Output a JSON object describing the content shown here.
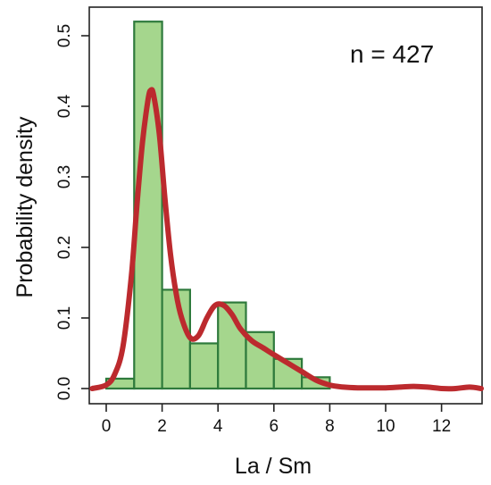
{
  "chart_data": {
    "type": "histogram",
    "xlabel": "La / Sm",
    "ylabel": "Probability density",
    "annotation": "n = 427",
    "xlim": [
      -0.5,
      13.5
    ],
    "ylim": [
      -0.03,
      0.555
    ],
    "x_ticks": [
      0,
      2,
      4,
      6,
      8,
      10,
      12
    ],
    "x_tick_labels": [
      "0",
      "2",
      "4",
      "6",
      "8",
      "10",
      "12"
    ],
    "y_ticks": [
      0.0,
      0.1,
      0.2,
      0.3,
      0.4,
      0.5
    ],
    "y_tick_labels": [
      "0.0",
      "0.1",
      "0.2",
      "0.3",
      "0.4",
      "0.5"
    ],
    "bins": [
      {
        "x0": 0,
        "x1": 1,
        "density": 0.014
      },
      {
        "x0": 1,
        "x1": 2,
        "density": 0.52
      },
      {
        "x0": 2,
        "x1": 3,
        "density": 0.14
      },
      {
        "x0": 3,
        "x1": 4,
        "density": 0.064
      },
      {
        "x0": 4,
        "x1": 5,
        "density": 0.122
      },
      {
        "x0": 5,
        "x1": 6,
        "density": 0.08
      },
      {
        "x0": 6,
        "x1": 7,
        "density": 0.042
      },
      {
        "x0": 7,
        "x1": 8,
        "density": 0.016
      }
    ],
    "density_curve": {
      "x": [
        -0.5,
        0,
        0.3,
        0.6,
        0.9,
        1.1,
        1.3,
        1.5,
        1.6,
        1.7,
        1.9,
        2.1,
        2.3,
        2.5,
        2.7,
        3.0,
        3.3,
        3.6,
        3.9,
        4.2,
        4.5,
        4.8,
        5.2,
        5.6,
        6.0,
        6.5,
        7.0,
        7.5,
        8.0,
        8.5,
        9.0,
        9.5,
        10.0,
        10.5,
        11.0,
        11.5,
        12.0,
        12.5,
        13.0,
        13.5
      ],
      "y": [
        0.0,
        0.005,
        0.02,
        0.06,
        0.16,
        0.26,
        0.35,
        0.41,
        0.423,
        0.415,
        0.36,
        0.27,
        0.19,
        0.135,
        0.1,
        0.072,
        0.075,
        0.1,
        0.118,
        0.118,
        0.105,
        0.085,
        0.068,
        0.058,
        0.048,
        0.036,
        0.024,
        0.012,
        0.005,
        0.002,
        0.001,
        0.001,
        0.001,
        0.002,
        0.003,
        0.002,
        0.0,
        0.0,
        0.002,
        0.0
      ]
    },
    "colors": {
      "bar_fill": "#a5d68d",
      "bar_stroke": "#2e7a3c",
      "curve": "#bc2a2e",
      "axis": "#222222"
    },
    "grid": false,
    "legend": "none"
  }
}
